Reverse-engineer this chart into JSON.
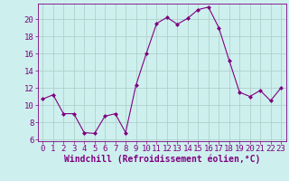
{
  "x": [
    0,
    1,
    2,
    3,
    4,
    5,
    6,
    7,
    8,
    9,
    10,
    11,
    12,
    13,
    14,
    15,
    16,
    17,
    18,
    19,
    20,
    21,
    22,
    23
  ],
  "y": [
    10.7,
    11.2,
    9.0,
    9.0,
    6.8,
    6.7,
    8.7,
    9.0,
    6.8,
    12.3,
    16.0,
    19.5,
    20.2,
    19.4,
    20.1,
    21.1,
    21.4,
    19.0,
    15.2,
    11.5,
    11.0,
    11.7,
    10.5,
    12.0
  ],
  "line_color": "#800080",
  "marker": "D",
  "marker_size": 2.0,
  "bg_color": "#cdf0ee",
  "grid_color": "#b0d0cc",
  "xlabel": "Windchill (Refroidissement éolien,°C)",
  "ylabel": "",
  "xlim": [
    -0.5,
    23.5
  ],
  "ylim": [
    5.8,
    21.8
  ],
  "yticks": [
    6,
    8,
    10,
    12,
    14,
    16,
    18,
    20
  ],
  "xticks": [
    0,
    1,
    2,
    3,
    4,
    5,
    6,
    7,
    8,
    9,
    10,
    11,
    12,
    13,
    14,
    15,
    16,
    17,
    18,
    19,
    20,
    21,
    22,
    23
  ],
  "tick_color": "#800080",
  "label_color": "#800080",
  "font_size": 6.5,
  "xlabel_fontsize": 7.0
}
